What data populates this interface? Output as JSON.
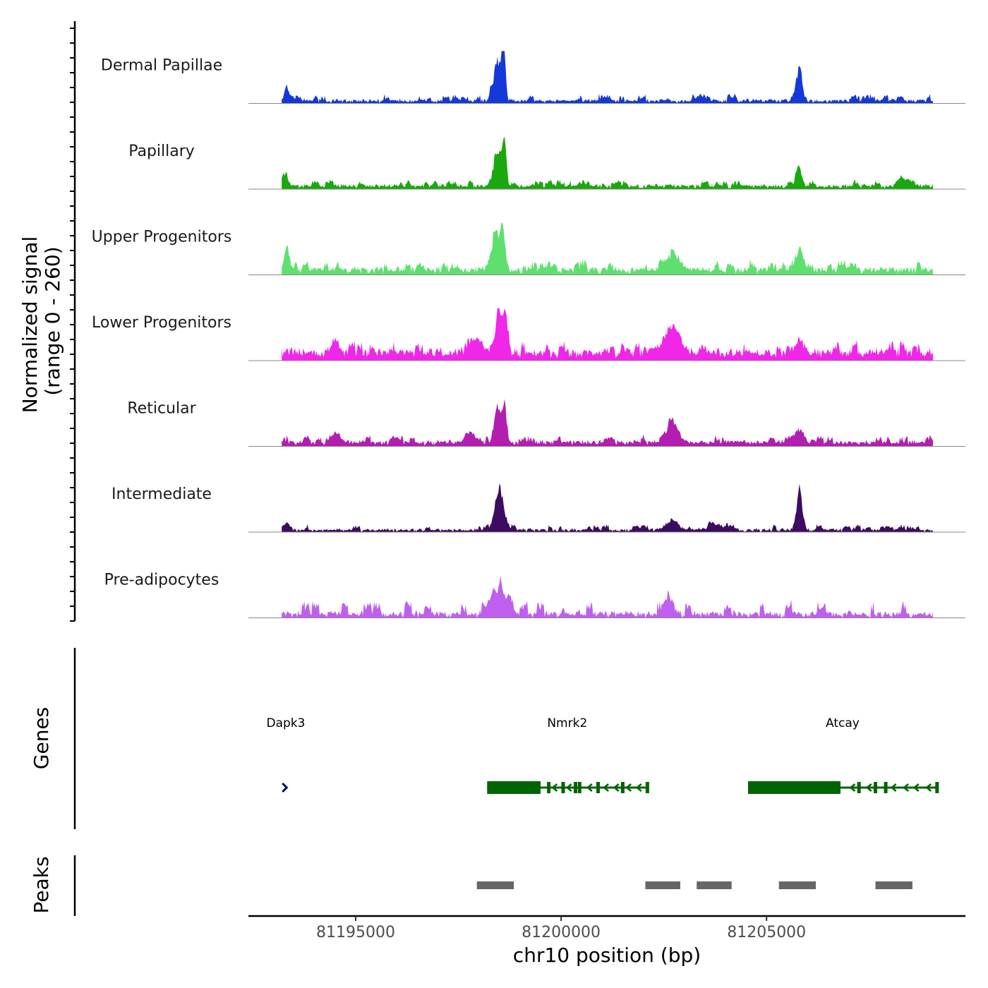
{
  "chart_data": {
    "type": "area",
    "title": "",
    "ylabel": "Normalized signal",
    "ylabel_range": "(range 0 - 260)",
    "ylim": [
      0,
      260
    ],
    "xlabel": "chr10 position (bp)",
    "xlim": [
      81192390,
      81209840
    ],
    "xticks": [
      81195000,
      81200000,
      81205000
    ],
    "xtick_labels": [
      "81195000",
      "81200000",
      "81205000"
    ],
    "signal_start": 81193200,
    "signal_end": 81209050,
    "tracks": [
      {
        "name": "Dermal Papillae",
        "color": "#1538d9",
        "baseline": 15,
        "noise": 12,
        "peaks": [
          [
            81193330,
            80,
            55
          ],
          [
            81198450,
            210,
            90
          ],
          [
            81198600,
            250,
            45
          ],
          [
            81205800,
            175,
            65
          ]
        ]
      },
      {
        "name": "Papillary",
        "color": "#19a80d",
        "baseline": 18,
        "noise": 10,
        "peaks": [
          [
            81193300,
            60,
            55
          ],
          [
            81198450,
            190,
            90
          ],
          [
            81198620,
            235,
            45
          ],
          [
            81205780,
            95,
            65
          ],
          [
            81208300,
            48,
            110
          ]
        ]
      },
      {
        "name": "Upper Progenitors",
        "color": "#5fe06e",
        "baseline": 28,
        "noise": 16,
        "peaks": [
          [
            81193350,
            80,
            60
          ],
          [
            81198400,
            230,
            70
          ],
          [
            81198580,
            245,
            55
          ],
          [
            81202700,
            75,
            180
          ],
          [
            81205800,
            95,
            70
          ]
        ]
      },
      {
        "name": "Lower Progenitors",
        "color": "#f026e8",
        "baseline": 45,
        "noise": 18,
        "peaks": [
          [
            81194500,
            70,
            90
          ],
          [
            81197900,
            85,
            140
          ],
          [
            81198480,
            210,
            70
          ],
          [
            81198650,
            220,
            55
          ],
          [
            81202700,
            130,
            190
          ],
          [
            81205800,
            55,
            110
          ]
        ]
      },
      {
        "name": "Reticular",
        "color": "#b21eb0",
        "baseline": 22,
        "noise": 12,
        "peaks": [
          [
            81194550,
            48,
            90
          ],
          [
            81197800,
            50,
            140
          ],
          [
            81198450,
            165,
            70
          ],
          [
            81198620,
            190,
            55
          ],
          [
            81202700,
            95,
            160
          ],
          [
            81205800,
            55,
            90
          ]
        ]
      },
      {
        "name": "Intermediate",
        "color": "#3d0b60",
        "baseline": 12,
        "noise": 10,
        "peaks": [
          [
            81193330,
            40,
            70
          ],
          [
            81198500,
            205,
            110
          ],
          [
            81202700,
            50,
            140
          ],
          [
            81203800,
            28,
            200
          ],
          [
            81205800,
            175,
            75
          ]
        ]
      },
      {
        "name": "Pre-adipocytes",
        "color": "#bf5ff0",
        "baseline": 22,
        "noise": 24,
        "peaks": [
          [
            81198350,
            140,
            70
          ],
          [
            81198550,
            140,
            70
          ],
          [
            81198750,
            95,
            70
          ],
          [
            81202650,
            85,
            80
          ]
        ]
      }
    ],
    "genes": [
      {
        "name": "Dapk3",
        "strand": "+",
        "color": "#000080",
        "start": 81193200,
        "end": 81193400,
        "thick_start": null,
        "thick_end": null,
        "exons": [],
        "chevrons": [
          81193270
        ]
      },
      {
        "name": "Nmrk2",
        "strand": "-",
        "color": "#006400",
        "start": 81198200,
        "end": 81202100,
        "thick_start": 81198200,
        "thick_end": 81199500,
        "exons": [
          81199700,
          81200050,
          81200350,
          81200450,
          81200900,
          81201500,
          81202100
        ],
        "chevrons": [
          81199850,
          81200200,
          81200700,
          81201100,
          81201350,
          81201650,
          81201900
        ]
      },
      {
        "name": "Atcay",
        "strand": "-",
        "color": "#006400",
        "start": 81204550,
        "end": 81209150,
        "thick_start": 81204550,
        "thick_end": 81206800,
        "exons": [
          81207250,
          81207650,
          81207900,
          81209150
        ],
        "chevrons": [
          81207100,
          81207500,
          81208100,
          81208400,
          81208650,
          81208950
        ]
      }
    ],
    "peaks": [
      {
        "start": 81197950,
        "end": 81198850
      },
      {
        "start": 81202050,
        "end": 81202900
      },
      {
        "start": 81203300,
        "end": 81204150
      },
      {
        "start": 81205300,
        "end": 81206200
      },
      {
        "start": 81207650,
        "end": 81208550
      }
    ],
    "panel_titles": {
      "genes": "Genes",
      "peaks": "Peaks"
    },
    "colors": {
      "peak": "#666666",
      "axis": "#000000",
      "baseline": "#888888"
    }
  }
}
